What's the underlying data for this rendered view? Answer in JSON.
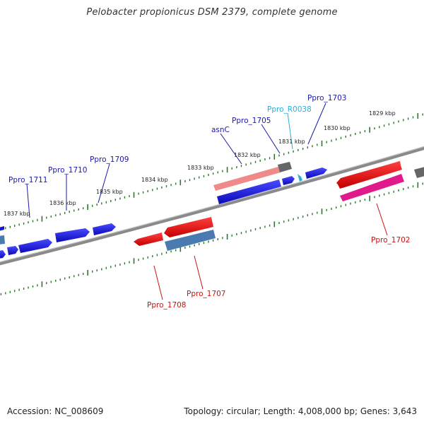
{
  "title": "Pelobacter propionicus DSM 2379, complete genome",
  "footer": {
    "accession": "Accession: NC_008609",
    "summary": "Topology: circular; Length: 4,008,000 bp; Genes: 3,643"
  },
  "colors": {
    "backbone": "#7a7a7a",
    "tick": "#2a7a2a",
    "forward_gene": "#1a1acc",
    "reverse_gene": "#dd1111",
    "rna_gene": "#2ab0e0",
    "label_blue": "#1a1aaa",
    "label_red": "#cc1111",
    "label_cyan": "#2ab0e0"
  },
  "kbp_labels": [
    "1829 kbp",
    "1830 kbp",
    "1831 kbp",
    "1832 kbp",
    "1833 kbp",
    "1834 kbp",
    "1835 kbp",
    "1836 kbp",
    "1837 kbp"
  ],
  "gene_labels": {
    "ppro_1703": "Ppro_1703",
    "ppro_r0038": "Ppro_R0038",
    "ppro_1705": "Ppro_1705",
    "asnc": "asnC",
    "ppro_1709": "Ppro_1709",
    "ppro_1710": "Ppro_1710",
    "ppro_1711": "Ppro_1711",
    "ppro_1702": "Ppro_1702",
    "ppro_1707": "Ppro_1707",
    "ppro_1708": "Ppro_1708"
  }
}
